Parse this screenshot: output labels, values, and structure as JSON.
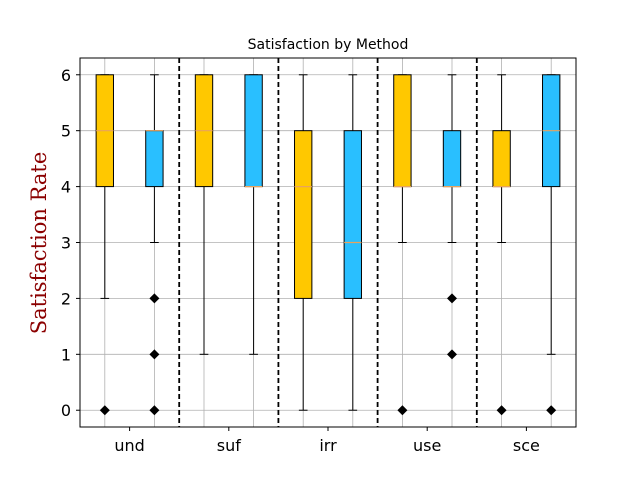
{
  "chart_data": {
    "type": "box",
    "title": "Satisfaction by Method",
    "xlabel": "",
    "ylabel": "Satisfaction Rate",
    "ylim": [
      -0.3,
      6.3
    ],
    "yticks": [
      0,
      1,
      2,
      3,
      4,
      5,
      6
    ],
    "grid": true,
    "categories": [
      "und",
      "suf",
      "irr",
      "use",
      "sce"
    ],
    "series_colors": [
      "#FFC800",
      "#29BFFF"
    ],
    "median_color": "#E8A35E",
    "outlier_color": "#000000",
    "ylabel_color": "#8B0000",
    "boxes": [
      {
        "category": "und",
        "series": 0,
        "whislo": 2,
        "q1": 4,
        "med": 5,
        "q3": 6,
        "whishi": 6,
        "fliers": [
          0
        ]
      },
      {
        "category": "und",
        "series": 1,
        "whislo": 3,
        "q1": 4,
        "med": 5,
        "q3": 5,
        "whishi": 6,
        "fliers": [
          0,
          1,
          2
        ]
      },
      {
        "category": "suf",
        "series": 0,
        "whislo": 1,
        "q1": 4,
        "med": 5,
        "q3": 6,
        "whishi": 6,
        "fliers": []
      },
      {
        "category": "suf",
        "series": 1,
        "whislo": 1,
        "q1": 4,
        "med": 4,
        "q3": 6,
        "whishi": 6,
        "fliers": []
      },
      {
        "category": "irr",
        "series": 0,
        "whislo": 0,
        "q1": 2,
        "med": 4,
        "q3": 5,
        "whishi": 6,
        "fliers": []
      },
      {
        "category": "irr",
        "series": 1,
        "whislo": 0,
        "q1": 2,
        "med": 3,
        "q3": 5,
        "whishi": 6,
        "fliers": []
      },
      {
        "category": "use",
        "series": 0,
        "whislo": 3,
        "q1": 4,
        "med": 4,
        "q3": 6,
        "whishi": 6,
        "fliers": [
          0
        ]
      },
      {
        "category": "use",
        "series": 1,
        "whislo": 3,
        "q1": 4,
        "med": 4,
        "q3": 5,
        "whishi": 6,
        "fliers": [
          1,
          2
        ]
      },
      {
        "category": "sce",
        "series": 0,
        "whislo": 3,
        "q1": 4,
        "med": 4,
        "q3": 5,
        "whishi": 6,
        "fliers": [
          0
        ]
      },
      {
        "category": "sce",
        "series": 1,
        "whislo": 1,
        "q1": 4,
        "med": 5,
        "q3": 6,
        "whishi": 6,
        "fliers": [
          0
        ]
      }
    ]
  }
}
